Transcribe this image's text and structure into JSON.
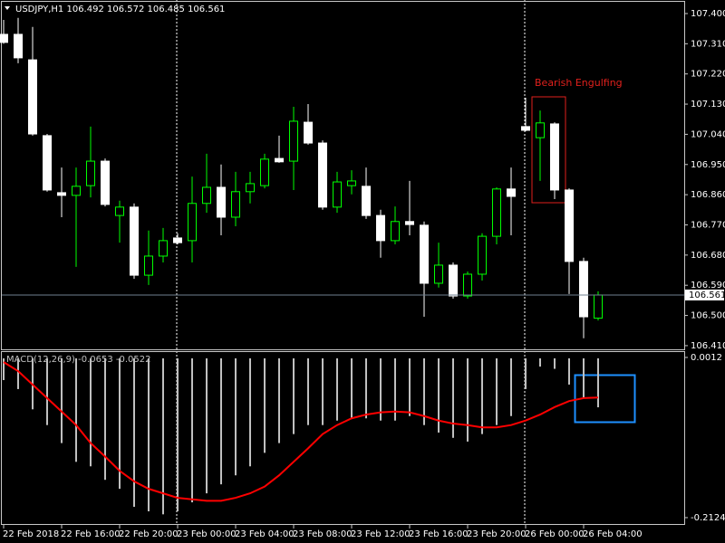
{
  "chart_data": [
    {
      "type": "candlestick",
      "title": "USDJPY,H1  106.492 106.572 106.485 106.561",
      "annotation": "Bearish Engulfing",
      "categories": [
        "22 Feb 2018",
        null,
        null,
        null,
        "22 Feb 16:00",
        null,
        null,
        null,
        "22 Feb 20:00",
        null,
        null,
        null,
        "23 Feb 00:00",
        null,
        null,
        null,
        "23 Feb 04:00",
        null,
        null,
        null,
        "23 Feb 08:00",
        null,
        null,
        null,
        "23 Feb 12:00",
        null,
        null,
        null,
        "23 Feb 16:00",
        null,
        null,
        null,
        "23 Feb 20:00",
        null,
        null,
        null,
        "26 Feb 00:00",
        null,
        null,
        null,
        "26 Feb 04:00",
        null
      ],
      "open": [
        107.338,
        107.338,
        107.262,
        107.036,
        106.866,
        106.858,
        106.887,
        106.96,
        106.798,
        106.823,
        106.62,
        106.677,
        106.731,
        106.723,
        106.834,
        106.882,
        106.793,
        106.869,
        106.887,
        106.968,
        106.96,
        107.076,
        107.014,
        106.823,
        106.887,
        106.885,
        106.798,
        106.723,
        106.78,
        106.769,
        106.596,
        106.65,
        106.558,
        106.623,
        106.736,
        106.877,
        107.063,
        107.03,
        107.071,
        106.874,
        106.661,
        106.492
      ],
      "high": [
        107.381,
        107.387,
        107.36,
        107.041,
        106.941,
        106.941,
        107.063,
        106.968,
        106.842,
        106.834,
        106.753,
        106.761,
        106.745,
        106.914,
        106.982,
        106.95,
        106.928,
        106.928,
        106.982,
        107.036,
        107.122,
        107.13,
        107.022,
        106.928,
        106.933,
        106.941,
        106.815,
        106.825,
        106.901,
        106.78,
        106.717,
        106.658,
        106.631,
        106.745,
        106.882,
        106.941,
        107.149,
        107.111,
        107.076,
        106.879,
        106.672,
        106.572
      ],
      "low": [
        107.31,
        107.252,
        107.036,
        106.869,
        106.793,
        106.645,
        106.852,
        106.825,
        106.717,
        106.609,
        106.591,
        106.658,
        106.712,
        106.658,
        106.806,
        106.739,
        106.766,
        106.834,
        106.879,
        106.955,
        106.874,
        107.009,
        106.815,
        106.806,
        106.861,
        106.788,
        106.672,
        106.712,
        106.739,
        106.496,
        106.583,
        106.55,
        106.55,
        106.604,
        106.712,
        106.739,
        107.049,
        106.901,
        106.847,
        106.564,
        106.432,
        106.485
      ],
      "close": [
        107.314,
        107.268,
        107.041,
        106.874,
        106.858,
        106.885,
        106.96,
        106.831,
        106.823,
        106.62,
        106.677,
        106.723,
        106.717,
        106.834,
        106.882,
        106.793,
        106.869,
        106.893,
        106.966,
        106.958,
        107.079,
        107.014,
        106.823,
        106.898,
        106.901,
        106.798,
        106.723,
        106.78,
        106.771,
        106.596,
        106.65,
        106.558,
        106.623,
        106.736,
        106.877,
        106.855,
        107.052,
        107.074,
        106.874,
        106.661,
        106.496,
        106.561
      ],
      "bull_color": "#00ff00",
      "bear_color": "#ffffff",
      "current_price": 106.561,
      "ylim": [
        106.399,
        107.435
      ],
      "yticks": [
        {
          "value": 107.4,
          "label": "107.400"
        },
        {
          "value": 107.31,
          "label": "107.310"
        },
        {
          "value": 107.22,
          "label": "107.220"
        },
        {
          "value": 107.13,
          "label": "107.130"
        },
        {
          "value": 107.04,
          "label": "107.040"
        },
        {
          "value": 106.95,
          "label": "106.950"
        },
        {
          "value": 106.86,
          "label": "106.860"
        },
        {
          "value": 106.77,
          "label": "106.770"
        },
        {
          "value": 106.68,
          "label": "106.680"
        },
        {
          "value": 106.59,
          "label": "106.590"
        },
        {
          "value": 106.5,
          "label": "106.500"
        },
        {
          "value": 106.41,
          "label": "106.410"
        }
      ]
    },
    {
      "type": "macd",
      "label": "MACD(12,26,9) -0.0653 -0.0522",
      "histogram": [
        -0.029,
        -0.041,
        -0.068,
        -0.089,
        -0.113,
        -0.138,
        -0.144,
        -0.162,
        -0.174,
        -0.198,
        -0.204,
        -0.208,
        -0.204,
        -0.192,
        -0.18,
        -0.168,
        -0.156,
        -0.144,
        -0.126,
        -0.113,
        -0.101,
        -0.089,
        -0.089,
        -0.083,
        -0.08,
        -0.08,
        -0.083,
        -0.083,
        -0.077,
        -0.089,
        -0.099,
        -0.106,
        -0.111,
        -0.101,
        -0.089,
        -0.077,
        -0.041,
        -0.011,
        -0.014,
        -0.035,
        -0.053,
        -0.0653
      ],
      "signal": [
        -0.005,
        -0.017,
        -0.035,
        -0.053,
        -0.071,
        -0.089,
        -0.113,
        -0.131,
        -0.15,
        -0.164,
        -0.174,
        -0.18,
        -0.186,
        -0.188,
        -0.19,
        -0.19,
        -0.186,
        -0.18,
        -0.171,
        -0.156,
        -0.138,
        -0.12,
        -0.101,
        -0.089,
        -0.08,
        -0.075,
        -0.072,
        -0.071,
        -0.072,
        -0.077,
        -0.083,
        -0.087,
        -0.089,
        -0.092,
        -0.092,
        -0.089,
        -0.083,
        -0.075,
        -0.065,
        -0.057,
        -0.053,
        -0.0522
      ],
      "histogram_color": "#c0c0c0",
      "signal_color": "#ff0000",
      "ylim": [
        -0.2221,
        0.0096
      ],
      "yticks": [
        0.0012,
        -0.2124
      ]
    }
  ]
}
